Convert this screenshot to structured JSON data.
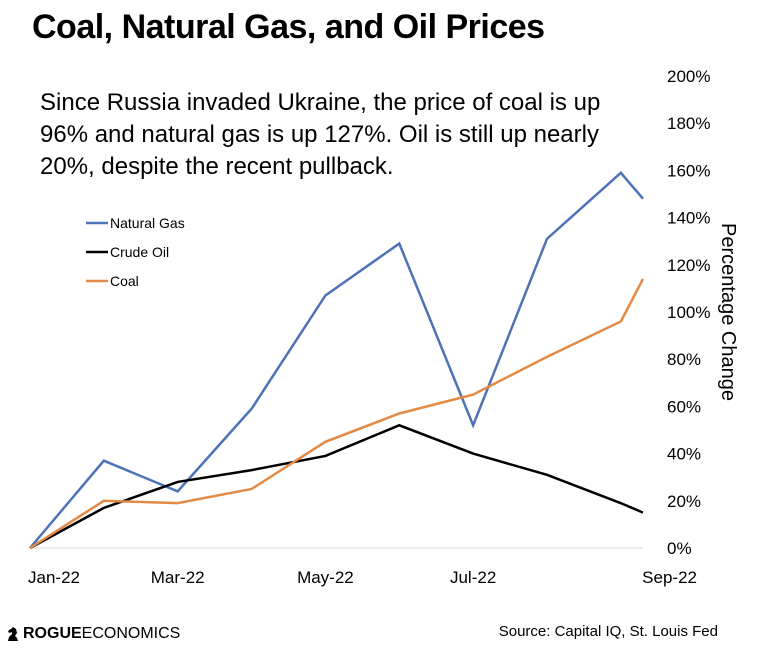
{
  "header": {
    "title": "Coal, Natural Gas, and Oil Prices",
    "subtitle": "Since Russia invaded Ukraine, the price of coal is up 96% and natural gas is up 127%. Oil is still up nearly 20%, despite the recent pullback."
  },
  "footer": {
    "logo_bold": "ROGUE",
    "logo_text": "ECONOMICS",
    "source": "Source: Capital IQ, St. Louis Fed"
  },
  "colors": {
    "natural_gas": "#4e72b8",
    "crude_oil": "#000000",
    "coal": "#e38a45"
  },
  "chart_data": {
    "type": "line",
    "title": "Coal, Natural Gas, and Oil Prices",
    "xlabel": "",
    "ylabel": "Percentage Change",
    "ylim": [
      0,
      200
    ],
    "yticks": [
      0,
      20,
      40,
      60,
      80,
      100,
      120,
      140,
      160,
      180,
      200
    ],
    "ytick_labels": [
      "0%",
      "20%",
      "40%",
      "60%",
      "80%",
      "100%",
      "120%",
      "140%",
      "160%",
      "180%",
      "200%"
    ],
    "x": [
      0,
      1,
      2,
      3,
      4,
      5,
      6,
      7,
      8,
      8.3
    ],
    "xticks": [
      0,
      2,
      4,
      6,
      8.3
    ],
    "xtick_labels": [
      "Jan-22",
      "Mar-22",
      "May-22",
      "Jul-22",
      "Sep-22"
    ],
    "legend_position": "upper-left",
    "grid": false,
    "series": [
      {
        "name": "Natural Gas",
        "color": "#4e72b8",
        "values": [
          0,
          37,
          24,
          59,
          107,
          129,
          52,
          131,
          159,
          148
        ]
      },
      {
        "name": "Crude Oil",
        "color": "#000000",
        "values": [
          0,
          17,
          28,
          33,
          39,
          52,
          40,
          31,
          19,
          15
        ]
      },
      {
        "name": "Coal",
        "color": "#e38a45",
        "values": [
          0,
          20,
          19,
          25,
          45,
          57,
          65,
          81,
          96,
          114
        ]
      }
    ]
  }
}
